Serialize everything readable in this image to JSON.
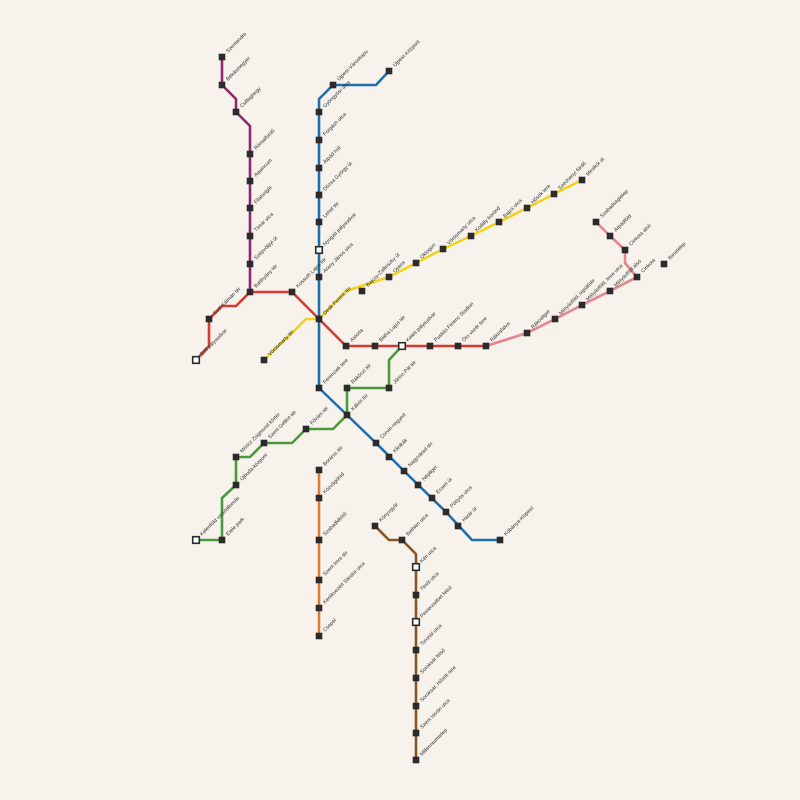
{
  "map": {
    "colors": {
      "blue": "#1f6fad",
      "purple": "#8a2a6a",
      "red": "#d83a30",
      "yellow": "#f2d21a",
      "green": "#4a9a3c",
      "orange": "#e07b35",
      "brown": "#8a5526",
      "pink": "#e8838d"
    },
    "lines": [
      {
        "id": "purple",
        "color": "purple"
      },
      {
        "id": "red-west",
        "color": "red"
      },
      {
        "id": "red-main",
        "color": "red"
      },
      {
        "id": "pink",
        "color": "pink"
      },
      {
        "id": "blue",
        "color": "blue"
      },
      {
        "id": "yellow-east",
        "color": "yellow"
      },
      {
        "id": "yellow-west",
        "color": "yellow"
      },
      {
        "id": "green-short",
        "color": "green"
      },
      {
        "id": "green-main",
        "color": "green"
      },
      {
        "id": "orange",
        "color": "orange"
      },
      {
        "id": "brown",
        "color": "brown"
      }
    ],
    "stations": [
      {
        "name": "Szentendre"
      },
      {
        "name": "Békásmegyer"
      },
      {
        "name": "Csillaghegy"
      },
      {
        "name": "Rómaifürdő"
      },
      {
        "name": "Aquincum"
      },
      {
        "name": "Filatorigát"
      },
      {
        "name": "Tímár utca"
      },
      {
        "name": "Szépvölgyi út"
      },
      {
        "name": "Batthyány tér"
      },
      {
        "name": "Szél Kálmán tér"
      },
      {
        "name": "Déli pályaudvar"
      },
      {
        "name": "Kossuth Lajos tér"
      },
      {
        "name": "Deák Ferenc tér"
      },
      {
        "name": "Astoria"
      },
      {
        "name": "Blaha Lujza tér"
      },
      {
        "name": "Keleti pályaudvar"
      },
      {
        "name": "Puskás Ferenc Stadion"
      },
      {
        "name": "Örs vezér tere"
      },
      {
        "name": "Rákosfalva"
      },
      {
        "name": "Rákosliget"
      },
      {
        "name": "Mátyásföld, repülőtér"
      },
      {
        "name": "Mátyásföld, Imre utca"
      },
      {
        "name": "Mátyásföld alsó"
      },
      {
        "name": "Cinkota"
      },
      {
        "name": "Cinkota alsó"
      },
      {
        "name": "Árpádföld"
      },
      {
        "name": "Szabadságtelep"
      },
      {
        "name": "Ilonatelep"
      },
      {
        "name": "Újpest-Városkapu"
      },
      {
        "name": "Újpest-Központ"
      },
      {
        "name": "Gyöngyösi utca"
      },
      {
        "name": "Forgách utca"
      },
      {
        "name": "Árpád híd"
      },
      {
        "name": "Dózsa György út"
      },
      {
        "name": "Lehel tér"
      },
      {
        "name": "Nyugati pályaudvar"
      },
      {
        "name": "Arany János utca"
      },
      {
        "name": "Ferenciek tere"
      },
      {
        "name": "Kálvin tér"
      },
      {
        "name": "Corvin-negyed"
      },
      {
        "name": "Klinikák"
      },
      {
        "name": "Nagyvárad tér"
      },
      {
        "name": "Népliget"
      },
      {
        "name": "Ecseri út"
      },
      {
        "name": "Pöttyös utca"
      },
      {
        "name": "Határ út"
      },
      {
        "name": "Kőbánya-Kispest"
      },
      {
        "name": "Bajcsy-Zsilinszky út"
      },
      {
        "name": "Opera"
      },
      {
        "name": "Oktogon"
      },
      {
        "name": "Vörösmarty utca"
      },
      {
        "name": "Kodály körönd"
      },
      {
        "name": "Bajza utca"
      },
      {
        "name": "Hősök tere"
      },
      {
        "name": "Széchenyi fürdő"
      },
      {
        "name": "Mexikói út"
      },
      {
        "name": "Vörösmarty tér"
      },
      {
        "name": "Rákóczi tér"
      },
      {
        "name": "János Pál tér"
      },
      {
        "name": "Fővám tér"
      },
      {
        "name": "Szent Gellért tér"
      },
      {
        "name": "Móricz Zsigmond körtér"
      },
      {
        "name": "Újbuda-központ"
      },
      {
        "name": "Kelenföld vasútállomás"
      },
      {
        "name": "Etele park"
      },
      {
        "name": "Boráros tér"
      },
      {
        "name": "Közvágóhíd"
      },
      {
        "name": "Szabadkikötő"
      },
      {
        "name": "Szent Imre tér"
      },
      {
        "name": "Kerékvezérl Sándor utca"
      },
      {
        "name": "Csepel"
      },
      {
        "name": "Könyvgyár"
      },
      {
        "name": "Bethlen utca"
      },
      {
        "name": "Kén utca"
      },
      {
        "name": "Timót utca"
      },
      {
        "name": "Pesterzsébet felső"
      },
      {
        "name": "Toronál utca"
      },
      {
        "name": "Soroksár felső"
      },
      {
        "name": "Soroksár, Hősök tere"
      },
      {
        "name": "Szent István utca"
      },
      {
        "name": "Millenniumtelep"
      }
    ]
  }
}
